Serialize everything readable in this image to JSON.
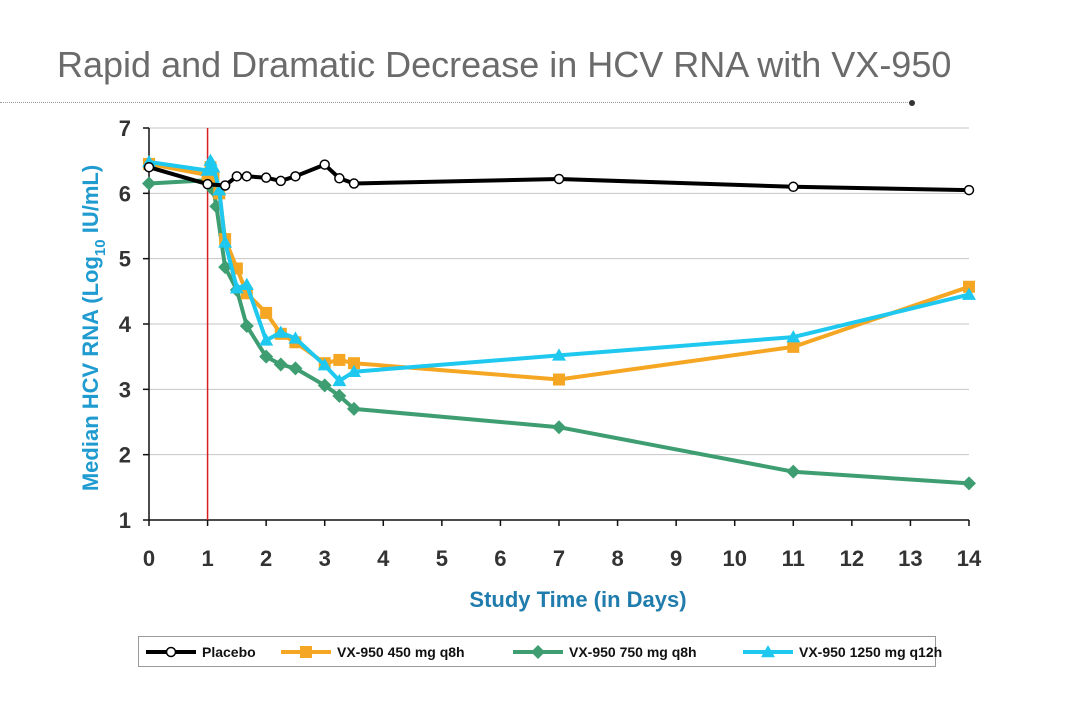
{
  "slide": {
    "title": "Rapid and Dramatic Decrease in HCV RNA with VX-950"
  },
  "chart_data": {
    "type": "line",
    "title": "",
    "xlabel": "Study Time (in Days)",
    "ylabel_parts": [
      "Median HCV RNA (Log",
      "10",
      " IU/mL)"
    ],
    "xlim": [
      0,
      14
    ],
    "ylim": [
      1,
      7
    ],
    "xticks": [
      0,
      1,
      2,
      3,
      4,
      5,
      6,
      7,
      8,
      9,
      10,
      11,
      12,
      13,
      14
    ],
    "yticks": [
      1,
      2,
      3,
      4,
      5,
      6,
      7
    ],
    "grid": "horizontal",
    "reference_line": {
      "x": 1,
      "color": "#d62020"
    },
    "legend_position": "bottom",
    "series": [
      {
        "name": "Placebo",
        "color": "#000000",
        "marker": "circle-open",
        "points": [
          [
            0,
            6.4
          ],
          [
            1,
            6.14
          ],
          [
            1.3,
            6.12
          ],
          [
            1.5,
            6.26
          ],
          [
            1.67,
            6.26
          ],
          [
            2,
            6.24
          ],
          [
            2.25,
            6.19
          ],
          [
            2.5,
            6.26
          ],
          [
            3,
            6.44
          ],
          [
            3.25,
            6.23
          ],
          [
            3.5,
            6.15
          ],
          [
            7,
            6.22
          ],
          [
            11,
            6.1
          ],
          [
            14,
            6.05
          ]
        ]
      },
      {
        "name": "VX-950 450 mg q8h",
        "color": "#f5a623",
        "marker": "square",
        "points": [
          [
            0,
            6.45
          ],
          [
            1,
            6.28
          ],
          [
            1.05,
            6.4
          ],
          [
            1.1,
            6.25
          ],
          [
            1.2,
            6.0
          ],
          [
            1.3,
            5.3
          ],
          [
            1.5,
            4.85
          ],
          [
            1.67,
            4.47
          ],
          [
            2,
            4.17
          ],
          [
            2.25,
            3.85
          ],
          [
            2.5,
            3.72
          ],
          [
            3,
            3.4
          ],
          [
            3.25,
            3.45
          ],
          [
            3.5,
            3.4
          ],
          [
            7,
            3.15
          ],
          [
            11,
            3.65
          ],
          [
            14,
            4.57
          ]
        ]
      },
      {
        "name": "VX-950 750 mg q8h",
        "color": "#3e9e72",
        "marker": "diamond",
        "points": [
          [
            0,
            6.15
          ],
          [
            1,
            6.2
          ],
          [
            1.05,
            6.25
          ],
          [
            1.1,
            6.05
          ],
          [
            1.15,
            5.8
          ],
          [
            1.3,
            4.87
          ],
          [
            1.5,
            4.52
          ],
          [
            1.67,
            3.97
          ],
          [
            2,
            3.5
          ],
          [
            2.25,
            3.38
          ],
          [
            2.5,
            3.32
          ],
          [
            3,
            3.06
          ],
          [
            3.25,
            2.9
          ],
          [
            3.5,
            2.7
          ],
          [
            7,
            2.42
          ],
          [
            11,
            1.74
          ],
          [
            14,
            1.56
          ]
        ]
      },
      {
        "name": "VX-950 1250 mg q12h",
        "color": "#1ec8ef",
        "marker": "triangle",
        "points": [
          [
            0,
            6.48
          ],
          [
            1,
            6.35
          ],
          [
            1.05,
            6.5
          ],
          [
            1.1,
            6.4
          ],
          [
            1.2,
            6.05
          ],
          [
            1.3,
            5.25
          ],
          [
            1.5,
            4.55
          ],
          [
            1.67,
            4.6
          ],
          [
            2,
            3.75
          ],
          [
            2.25,
            3.87
          ],
          [
            2.5,
            3.78
          ],
          [
            3,
            3.37
          ],
          [
            3.25,
            3.13
          ],
          [
            3.5,
            3.27
          ],
          [
            7,
            3.52
          ],
          [
            11,
            3.8
          ],
          [
            14,
            4.45
          ]
        ]
      }
    ]
  }
}
